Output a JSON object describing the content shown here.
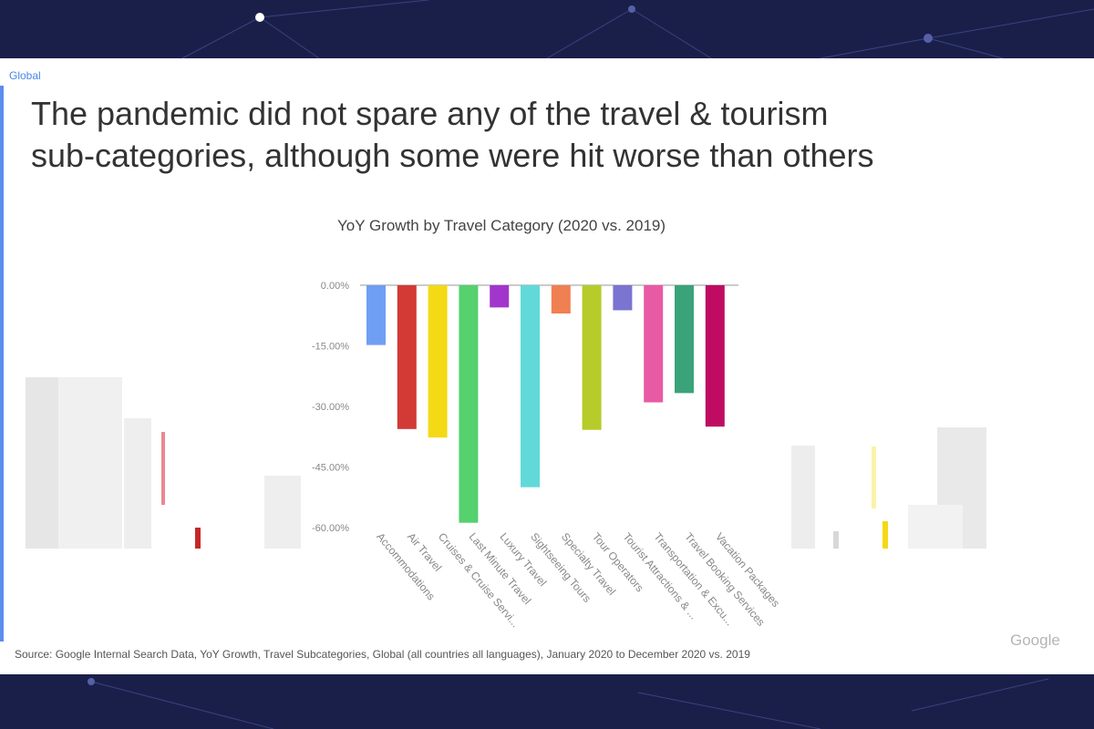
{
  "page": {
    "region_label": "Global",
    "headline_line1": "The pandemic did not spare any of the travel & tourism",
    "headline_line2": "sub-categories, although some were hit worse than others",
    "source": "Source: Google Internal Search Data, YoY Growth, Travel Subcategories, Global (all countries all languages), January 2020 to December 2020 vs. 2019",
    "brand": "Google",
    "colors": {
      "background": "#1a1f4a",
      "slide": "#ffffff",
      "accent": "#5b8def"
    }
  },
  "chart_data": {
    "type": "bar",
    "title": "YoY Growth by Travel Category (2020 vs. 2019)",
    "xlabel": "",
    "ylabel": "",
    "ylim": [
      -0.6,
      0
    ],
    "yticks": [
      0,
      -0.15,
      -0.3,
      -0.45,
      -0.6
    ],
    "ytick_labels": [
      "0.00%",
      "-15.00%",
      "-30.00%",
      "-45.00%",
      "-60.00%"
    ],
    "grid": false,
    "categories": [
      "Accommodations",
      "Air Travel",
      "Cruises & Cruise Servi...",
      "Last Minute Travel",
      "Luxury Travel",
      "Sightseeing Tours",
      "Specialty Travel",
      "Tour Operators",
      "Tourist Attractions & ...",
      "Transportation & Excu...",
      "Travel Booking Services",
      "Vacation Packages"
    ],
    "values": [
      -0.148,
      -0.356,
      -0.377,
      -0.588,
      -0.055,
      -0.5,
      -0.07,
      -0.358,
      -0.062,
      -0.29,
      -0.267,
      -0.35
    ],
    "colors": [
      "#6e9ff5",
      "#d23a35",
      "#f4d915",
      "#55d16d",
      "#a236cc",
      "#62d9d9",
      "#f07f52",
      "#b7cb2b",
      "#7b74d0",
      "#e95aa4",
      "#3aa37a",
      "#bf0c62"
    ]
  }
}
